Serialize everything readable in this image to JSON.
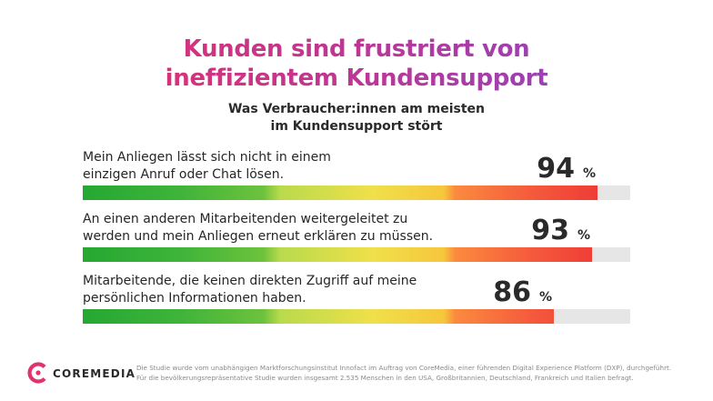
{
  "title": {
    "line1": "Kunden sind frustriert von",
    "line2": "ineffizientem Kundensupport"
  },
  "subtitle": {
    "line1": "Was Verbraucher:innen am meisten",
    "line2": "im Kundensupport stört"
  },
  "chart_data": {
    "type": "bar",
    "orientation": "horizontal",
    "ylim": [
      0,
      100
    ],
    "categories": [
      "Mein Anliegen lässt sich nicht in einem einzigen Anruf oder Chat lösen.",
      "An einen anderen Mitarbeitenden weitergeleitet zu werden und mein Anliegen erneut erklären zu müssen.",
      "Mitarbeitende, die keinen direkten Zugriff auf meine persönlichen Informationen haben."
    ],
    "values": [
      94,
      93,
      86
    ],
    "unit": "%",
    "rows": [
      {
        "label_line1": "Mein Anliegen lässt sich nicht in einem",
        "label_line2": "einzigen Anruf oder Chat lösen.",
        "value": 94,
        "value_label": "94",
        "unit": "%"
      },
      {
        "label_line1": "An einen anderen Mitarbeitenden weitergeleitet zu",
        "label_line2": "werden und mein Anliegen erneut erklären zu müssen.",
        "value": 93,
        "value_label": "93",
        "unit": "%"
      },
      {
        "label_line1": "Mitarbeitende, die keinen direkten Zugriff auf meine",
        "label_line2": "persönlichen Informationen haben.",
        "value": 86,
        "value_label": "86",
        "unit": "%"
      }
    ],
    "colors": {
      "low": "#25a832",
      "mid": "#f0e04a",
      "high": "#ec2d33",
      "track": "#e6e6e6"
    }
  },
  "footer": {
    "logo_text": "COREMEDIA",
    "logo_color": "#e0326e",
    "note_line1": "Die Studie wurde vom unabhängigen Marktforschungsinstitut Innofact im Auftrag von CoreMedia, einer führenden Digital Experience Platform (DXP), durchgeführt.",
    "note_line2": "Für die bevölkerungsrepräsentative Studie wurden insgesamt 2.535 Menschen in den USA, Großbritannien, Deutschland, Frankreich und Italien befragt."
  }
}
